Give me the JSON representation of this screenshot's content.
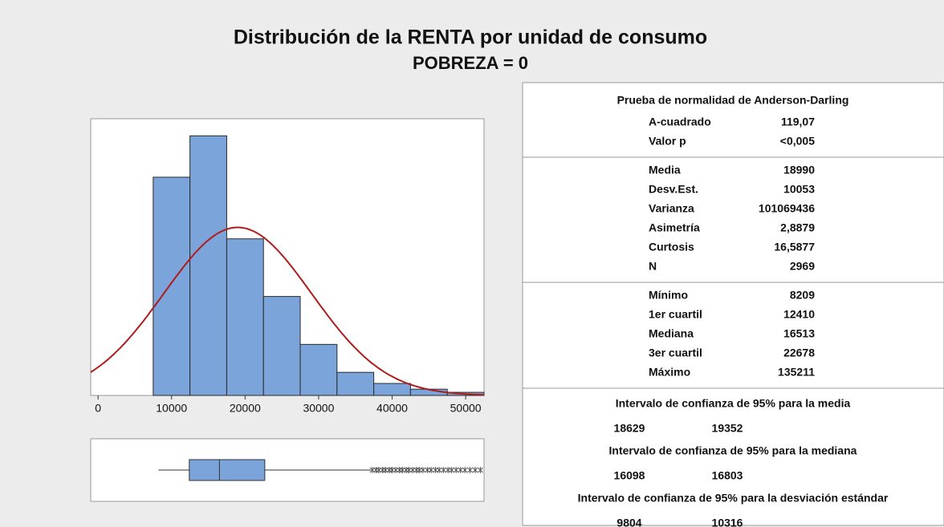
{
  "chart_data": [
    {
      "type": "histogram",
      "title": "Distribución de la RENTA por unidad de consumo",
      "subtitle": "POBREZA = 0",
      "bins": [
        7500,
        12500,
        17500,
        22500,
        27500,
        32500,
        37500,
        42500,
        47500,
        52500
      ],
      "counts": [
        765,
        910,
        549,
        347,
        179,
        81,
        42,
        22,
        11
      ],
      "color": "#7ba4da",
      "xlim": [
        -1000,
        52500
      ],
      "xticks": [
        0,
        10000,
        20000,
        30000,
        40000,
        50000
      ],
      "ylim": [
        0,
        970
      ],
      "curve": {
        "mean": 18990,
        "sd": 10053,
        "n": 2969,
        "color": "#b01c1c"
      }
    },
    {
      "type": "boxplot",
      "color": "#7ba4da",
      "xlim": [
        -1000,
        52500
      ],
      "whisker_low": 8209,
      "q1": 12410,
      "median": 16513,
      "q3": 22678,
      "whisker_high": 37100,
      "outliers": [
        37300,
        37800,
        38200,
        38700,
        39100,
        39600,
        40000,
        40500,
        41000,
        41400,
        41900,
        42300,
        42800,
        43300,
        43700,
        44200,
        44800,
        45300,
        45900,
        46400,
        47000,
        47600,
        48100,
        48700,
        49300,
        49900,
        50600,
        51300,
        52000
      ]
    }
  ],
  "table": {
    "sections": [
      {
        "title": "Prueba de normalidad de Anderson-Darling",
        "rows": [
          [
            "A-cuadrado",
            "119,07"
          ],
          [
            "Valor p",
            "<0,005"
          ]
        ]
      },
      {
        "rows": [
          [
            "Media",
            "18990"
          ],
          [
            "Desv.Est.",
            "10053"
          ],
          [
            "Varianza",
            "101069436"
          ],
          [
            "Asimetría",
            "2,8879"
          ],
          [
            "Curtosis",
            "16,5877"
          ],
          [
            "N",
            "2969"
          ]
        ]
      },
      {
        "rows": [
          [
            "Mínimo",
            "8209"
          ],
          [
            "1er cuartil",
            "12410"
          ],
          [
            "Mediana",
            "16513"
          ],
          [
            "3er cuartil",
            "22678"
          ],
          [
            "Máximo",
            "135211"
          ]
        ]
      }
    ],
    "intervals": [
      {
        "title": "Intervalo de confianza de 95% para la media",
        "values": [
          "18629",
          "19352"
        ]
      },
      {
        "title": "Intervalo de confianza de 95% para la mediana",
        "values": [
          "16098",
          "16803"
        ]
      },
      {
        "title": "Intervalo de confianza de 95% para la desviación estándar",
        "values": [
          "9804",
          "10316"
        ]
      }
    ]
  }
}
